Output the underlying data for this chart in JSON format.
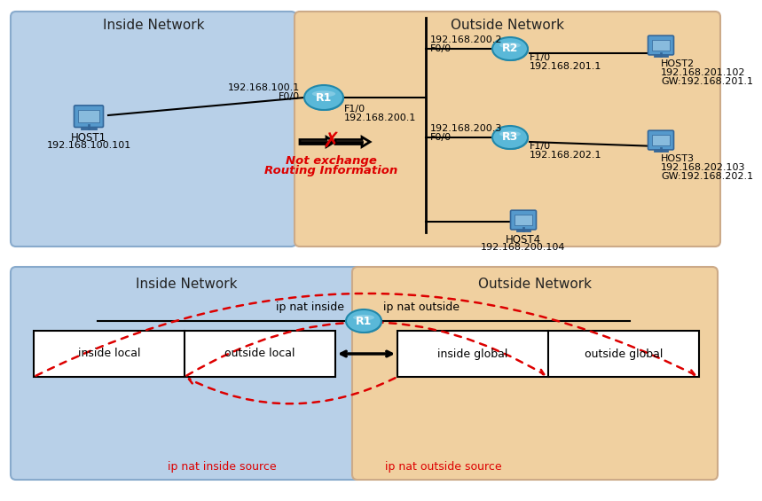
{
  "bg_color": "#ffffff",
  "inside_bg": "#b8d0e8",
  "outside_bg": "#f0d0a0",
  "inside_label": "Inside Network",
  "outside_label": "Outside Network",
  "host1_label": "HOST1\n192.168.100.101",
  "r1_label": "R1",
  "r2_label": "R2",
  "r3_label": "R3",
  "r1_f00_top": "192.168.100.1",
  "r1_f00_bot": "F0/0",
  "r1_f10_top": "F1/0",
  "r1_f10_bot": "192.168.200.1",
  "r2_f00_top": "192.168.200.2",
  "r2_f00_bot": "F0/0",
  "r2_f10_top": "F1/0",
  "r2_f10_bot": "192.168.201.1",
  "r3_f00_top": "192.168.200.3",
  "r3_f00_bot": "F0/0",
  "r3_f10_top": "F1/0",
  "r3_f10_bot": "192.168.202.1",
  "host2_line1": "HOST2",
  "host2_line2": "192.168.201.102",
  "host2_line3": "GW:192.168.201.1",
  "host3_line1": "HOST3",
  "host3_line2": "192.168.202.103",
  "host3_line3": "GW:192.168.202.1",
  "host4_line1": "HOST4",
  "host4_line2": "192.168.200.104",
  "not_exchange_1": "Not exchange",
  "not_exchange_2": "Routing Information",
  "bottom_inside_label": "Inside Network",
  "bottom_outside_label": "Outside Network",
  "r1_bottom_label": "R1",
  "ip_nat_inside": "ip nat inside",
  "ip_nat_outside": "ip nat outside",
  "inside_local": "inside local",
  "outside_local": "outside local",
  "inside_global": "inside global",
  "outside_global": "outside global",
  "ip_nat_inside_source": "ip nat inside source",
  "ip_nat_outside_source": "ip nat outside source",
  "router_face": "#5ab8d8",
  "router_edge": "#2288aa",
  "comp_body": "#4488bb",
  "comp_screen": "#88ccee",
  "black": "#000000",
  "red": "#dd0000",
  "white": "#ffffff"
}
